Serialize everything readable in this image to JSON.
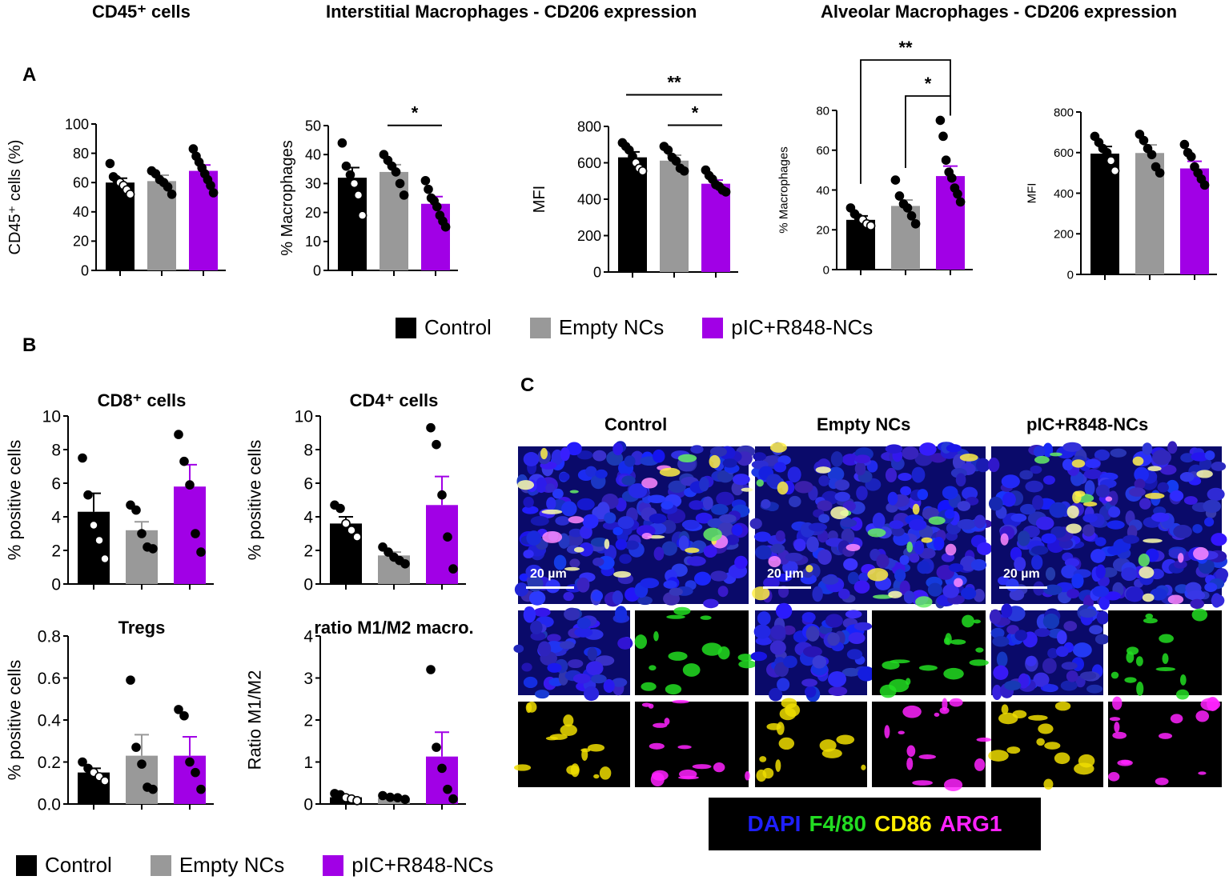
{
  "headers": {
    "h1": "CD45⁺ cells",
    "h2": "Interstitial Macrophages - CD206 expression",
    "h3": "Alveolar Macrophages - CD206 expression"
  },
  "panels": {
    "a": "A",
    "b": "B",
    "c": "C"
  },
  "colors": {
    "control": "#000000",
    "empty": "#999999",
    "pic": "#a100e6"
  },
  "legend_top": {
    "items": [
      "Control",
      "Empty NCs",
      "pIC+R848-NCs"
    ]
  },
  "legend_bottom": {
    "items": [
      "Control",
      "Empty NCs",
      "pIC+R848-NCs"
    ]
  },
  "chart_data": [
    {
      "type": "bar",
      "title": "",
      "ylabel": "CD45⁺ cells (%)",
      "ylim": [
        0,
        100
      ],
      "yticks": [
        "0",
        "20",
        "40",
        "60",
        "80",
        "100"
      ],
      "categories": [
        "Control",
        "Empty NCs",
        "pIC+R848-NCs"
      ],
      "values": [
        60,
        61,
        68
      ],
      "errors": [
        3,
        4,
        4
      ],
      "points": [
        [
          73,
          64,
          62,
          60,
          58,
          55,
          52
        ],
        [
          68,
          66,
          62,
          60,
          57,
          52
        ],
        [
          83,
          78,
          74,
          70,
          66,
          62,
          58,
          53
        ]
      ],
      "significance": []
    },
    {
      "type": "bar",
      "title": "",
      "ylabel": "% Macrophages",
      "ylim": [
        0,
        50
      ],
      "yticks": [
        "0",
        "10",
        "20",
        "30",
        "40",
        "50"
      ],
      "categories": [
        "Control",
        "Empty NCs",
        "pIC+R848-NCs"
      ],
      "values": [
        32,
        34,
        23
      ],
      "errors": [
        3.5,
        2.5,
        2.5
      ],
      "points": [
        [
          44,
          36,
          33,
          30,
          26,
          19
        ],
        [
          40,
          38,
          36,
          34,
          30,
          26
        ],
        [
          31,
          28,
          25,
          24,
          22,
          19,
          17,
          15
        ]
      ],
      "significance": [
        {
          "from": 1,
          "to": 2,
          "label": "*",
          "level": 0
        }
      ]
    },
    {
      "type": "bar",
      "title": "",
      "ylabel": "MFI",
      "ylim": [
        0,
        800
      ],
      "yticks": [
        "0",
        "200",
        "400",
        "600",
        "800"
      ],
      "categories": [
        "Control",
        "Empty NCs",
        "pIC+R848-NCs"
      ],
      "values": [
        630,
        612,
        485
      ],
      "errors": [
        30,
        30,
        20
      ],
      "points": [
        [
          710,
          690,
          670,
          635,
          600,
          570,
          555
        ],
        [
          690,
          670,
          630,
          610,
          570,
          555
        ],
        [
          560,
          530,
          510,
          480,
          470,
          450,
          440
        ]
      ],
      "significance": [
        {
          "from": 1,
          "to": 2,
          "label": "*",
          "level": 0
        },
        {
          "from": 0,
          "to": 2,
          "label": "**",
          "level": 1
        }
      ]
    },
    {
      "type": "bar",
      "title": "",
      "ylabel": "% Macrophages",
      "ylim": [
        0,
        80
      ],
      "yticks": [
        "0",
        "20",
        "40",
        "60",
        "80"
      ],
      "categories": [
        "Control",
        "Empty NCs",
        "pIC+R848-NCs"
      ],
      "values": [
        25,
        32,
        47
      ],
      "errors": [
        2,
        3,
        5
      ],
      "points": [
        [
          31,
          28,
          26,
          25,
          23,
          22
        ],
        [
          45,
          37,
          33,
          31,
          27,
          23
        ],
        [
          75,
          67,
          55,
          49,
          46,
          41,
          38,
          34
        ]
      ],
      "significance": [
        {
          "from": 1,
          "to": 2,
          "label": "*",
          "level": 0
        },
        {
          "from": 0,
          "to": 2,
          "label": "**",
          "level": 1
        }
      ]
    },
    {
      "type": "bar",
      "title": "",
      "ylabel": "MFI",
      "ylim": [
        0,
        800
      ],
      "yticks": [
        "0",
        "200",
        "400",
        "600",
        "800"
      ],
      "categories": [
        "Control",
        "Empty NCs",
        "pIC+R848-NCs"
      ],
      "values": [
        595,
        598,
        522
      ],
      "errors": [
        35,
        40,
        35
      ],
      "points": [
        [
          680,
          650,
          620,
          600,
          560,
          510
        ],
        [
          690,
          660,
          620,
          590,
          530,
          500
        ],
        [
          640,
          600,
          580,
          530,
          500,
          470,
          440
        ]
      ],
      "significance": []
    },
    {
      "type": "bar",
      "title": "CD8⁺ cells",
      "ylabel": "% positive cells",
      "ylim": [
        0,
        10
      ],
      "yticks": [
        "0",
        "2",
        "4",
        "6",
        "8",
        "10"
      ],
      "categories": [
        "Control",
        "Empty NCs",
        "pIC+R848-NCs"
      ],
      "values": [
        4.3,
        3.2,
        5.8
      ],
      "errors": [
        1.1,
        0.5,
        1.3
      ],
      "points": [
        [
          7.5,
          5.3,
          3.5,
          2.6,
          1.5
        ],
        [
          4.7,
          4.4,
          3.0,
          2.2,
          2.1
        ],
        [
          8.9,
          7.3,
          5.9,
          3.0,
          1.9
        ]
      ],
      "significance": []
    },
    {
      "type": "bar",
      "title": "CD4⁺ cells",
      "ylabel": "% positive cells",
      "ylim": [
        0,
        10
      ],
      "yticks": [
        "0",
        "2",
        "4",
        "6",
        "8",
        "10"
      ],
      "categories": [
        "Control",
        "Empty NCs",
        "pIC+R848-NCs"
      ],
      "values": [
        3.6,
        1.7,
        4.7
      ],
      "errors": [
        0.4,
        0.2,
        1.7
      ],
      "points": [
        [
          4.7,
          4.5,
          3.6,
          3.2,
          2.8
        ],
        [
          2.2,
          1.9,
          1.6,
          1.4,
          1.2
        ],
        [
          9.3,
          8.3,
          5.3,
          2.8,
          0.9
        ]
      ],
      "significance": []
    },
    {
      "type": "bar",
      "title": "Tregs",
      "ylabel": "% positive cells",
      "ylim": [
        0,
        0.8
      ],
      "yticks": [
        "0.0",
        "0.2",
        "0.4",
        "0.6",
        "0.8"
      ],
      "categories": [
        "Control",
        "Empty NCs",
        "pIC+R848-NCs"
      ],
      "values": [
        0.15,
        0.23,
        0.23
      ],
      "errors": [
        0.02,
        0.1,
        0.09
      ],
      "points": [
        [
          0.2,
          0.17,
          0.15,
          0.13,
          0.11
        ],
        [
          0.59,
          0.27,
          0.19,
          0.08,
          0.07
        ],
        [
          0.45,
          0.42,
          0.2,
          0.15,
          0.07
        ]
      ],
      "significance": []
    },
    {
      "type": "bar",
      "title": "ratio M1/M2 macro.",
      "ylabel": "Ratio M1/M2",
      "ylim": [
        0,
        4
      ],
      "yticks": [
        "0",
        "1",
        "2",
        "3",
        "4"
      ],
      "categories": [
        "Control",
        "Empty NCs",
        "pIC+R848-NCs"
      ],
      "values": [
        0.16,
        0.14,
        1.13
      ],
      "errors": [
        0.04,
        0.03,
        0.58
      ],
      "points": [
        [
          0.25,
          0.22,
          0.15,
          0.12,
          0.08
        ],
        [
          0.2,
          0.16,
          0.15,
          0.11
        ],
        [
          3.2,
          1.35,
          0.85,
          0.35,
          0.12
        ]
      ],
      "significance": []
    }
  ],
  "microscopy": {
    "col_titles": [
      "Control",
      "Empty NCs",
      "pIC+R848-NCs"
    ],
    "scale_label": "20 µm",
    "stains": [
      {
        "label": "DAPI",
        "color": "#1f1fff"
      },
      {
        "label": "F4/80",
        "color": "#22dd22"
      },
      {
        "label": "CD86",
        "color": "#ffee00"
      },
      {
        "label": "ARG1",
        "color": "#ff22ff"
      }
    ]
  }
}
